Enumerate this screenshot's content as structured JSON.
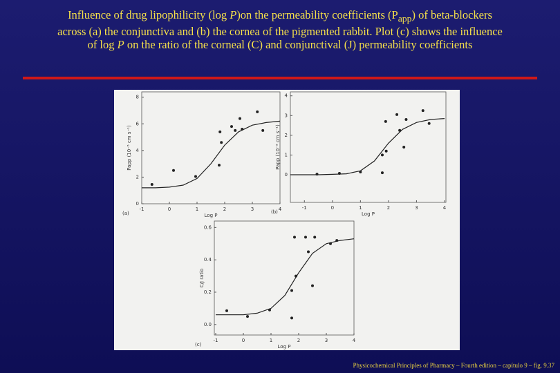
{
  "slide": {
    "title": [
      "Influence of drug lipophilicity (log ",
      "P",
      ")on the permeability coefficients (P",
      "app",
      ") of beta-blockers across (a) the conjunctiva and (b) the cornea of the pigmented rabbit. Plot (c) shows the influence of log ",
      "P",
      " on the ratio of the corneal (C) and conjunctival (J) permeability coefficients"
    ],
    "footer": "Physicochemical Principles of Pharmacy – Fourth edition – capítulo 9 – fig. 9.37"
  },
  "chart_data": [
    {
      "type": "scatter",
      "panel": "(a)",
      "xlabel": "Log P",
      "ylabel": "Papp (10⁻⁵ cm s⁻¹)",
      "xlim": [
        -1,
        4
      ],
      "xticks": [
        -1,
        0,
        1,
        2,
        3,
        4
      ],
      "ylim": [
        0,
        8.4
      ],
      "yticks": [
        0,
        2,
        4,
        6,
        8
      ],
      "series": [
        {
          "kind": "points",
          "color": "#222222",
          "x": [
            -0.63,
            0.15,
            0.95,
            1.8,
            1.83,
            1.88,
            2.25,
            2.38,
            2.55,
            2.63,
            3.18,
            3.38
          ],
          "values": [
            1.45,
            2.5,
            2.05,
            2.9,
            5.4,
            4.6,
            5.8,
            5.5,
            6.4,
            5.6,
            6.9,
            5.5
          ]
        },
        {
          "kind": "fit",
          "color": "#222222",
          "x": [
            -1,
            -0.5,
            0,
            0.5,
            1,
            1.5,
            2,
            2.5,
            3,
            3.5,
            4
          ],
          "values": [
            1.2,
            1.2,
            1.25,
            1.4,
            1.9,
            3.0,
            4.4,
            5.4,
            5.9,
            6.1,
            6.2
          ]
        }
      ]
    },
    {
      "type": "scatter",
      "panel": "(b)",
      "xlabel": "Log P",
      "ylabel": "Papp (10⁻⁵ cm s⁻¹)",
      "xlim": [
        -1.5,
        4.05
      ],
      "xticks": [
        -1,
        0,
        1,
        2,
        3,
        4
      ],
      "ylim": [
        -1.4,
        4.2
      ],
      "yticks": [
        0,
        1,
        2,
        3,
        4
      ],
      "series": [
        {
          "kind": "points",
          "color": "#222222",
          "x": [
            -0.55,
            0.25,
            1.0,
            1.78,
            1.78,
            1.92,
            1.9,
            2.3,
            2.4,
            2.55,
            2.63,
            3.23,
            3.45
          ],
          "values": [
            0.03,
            0.07,
            0.14,
            0.1,
            1.0,
            1.2,
            2.7,
            3.05,
            2.25,
            1.4,
            2.8,
            3.25,
            2.6
          ]
        },
        {
          "kind": "fit",
          "color": "#222222",
          "x": [
            -1.5,
            -1,
            -0.5,
            0,
            0.5,
            1,
            1.5,
            2,
            2.5,
            3,
            3.5,
            4
          ],
          "values": [
            0,
            0,
            0,
            0.02,
            0.05,
            0.2,
            0.7,
            1.6,
            2.3,
            2.65,
            2.8,
            2.85
          ]
        }
      ]
    },
    {
      "type": "scatter",
      "panel": "(c)",
      "xlabel": "Log P",
      "ylabel": "C/J ratio",
      "xlim": [
        -1.05,
        4.0
      ],
      "xticks": [
        -1,
        0,
        1,
        2,
        3,
        4
      ],
      "ylim": [
        -0.065,
        0.64
      ],
      "yticks": [
        {
          "value": 0,
          "label": "0.0"
        },
        0.2,
        0.4,
        0.6
      ],
      "series": [
        {
          "kind": "points",
          "color": "#222222",
          "x": [
            -0.6,
            0.15,
            0.95,
            1.75,
            1.75,
            1.85,
            1.9,
            2.25,
            2.35,
            2.5,
            2.58,
            3.15,
            3.38
          ],
          "values": [
            0.085,
            0.05,
            0.09,
            0.04,
            0.21,
            0.54,
            0.3,
            0.54,
            0.45,
            0.24,
            0.54,
            0.5,
            0.52
          ]
        },
        {
          "kind": "fit",
          "color": "#222222",
          "x": [
            -1,
            -0.5,
            0,
            0.5,
            1,
            1.5,
            2,
            2.5,
            3,
            3.5,
            4
          ],
          "values": [
            0.06,
            0.06,
            0.06,
            0.07,
            0.1,
            0.18,
            0.32,
            0.44,
            0.5,
            0.52,
            0.53
          ]
        }
      ]
    }
  ]
}
